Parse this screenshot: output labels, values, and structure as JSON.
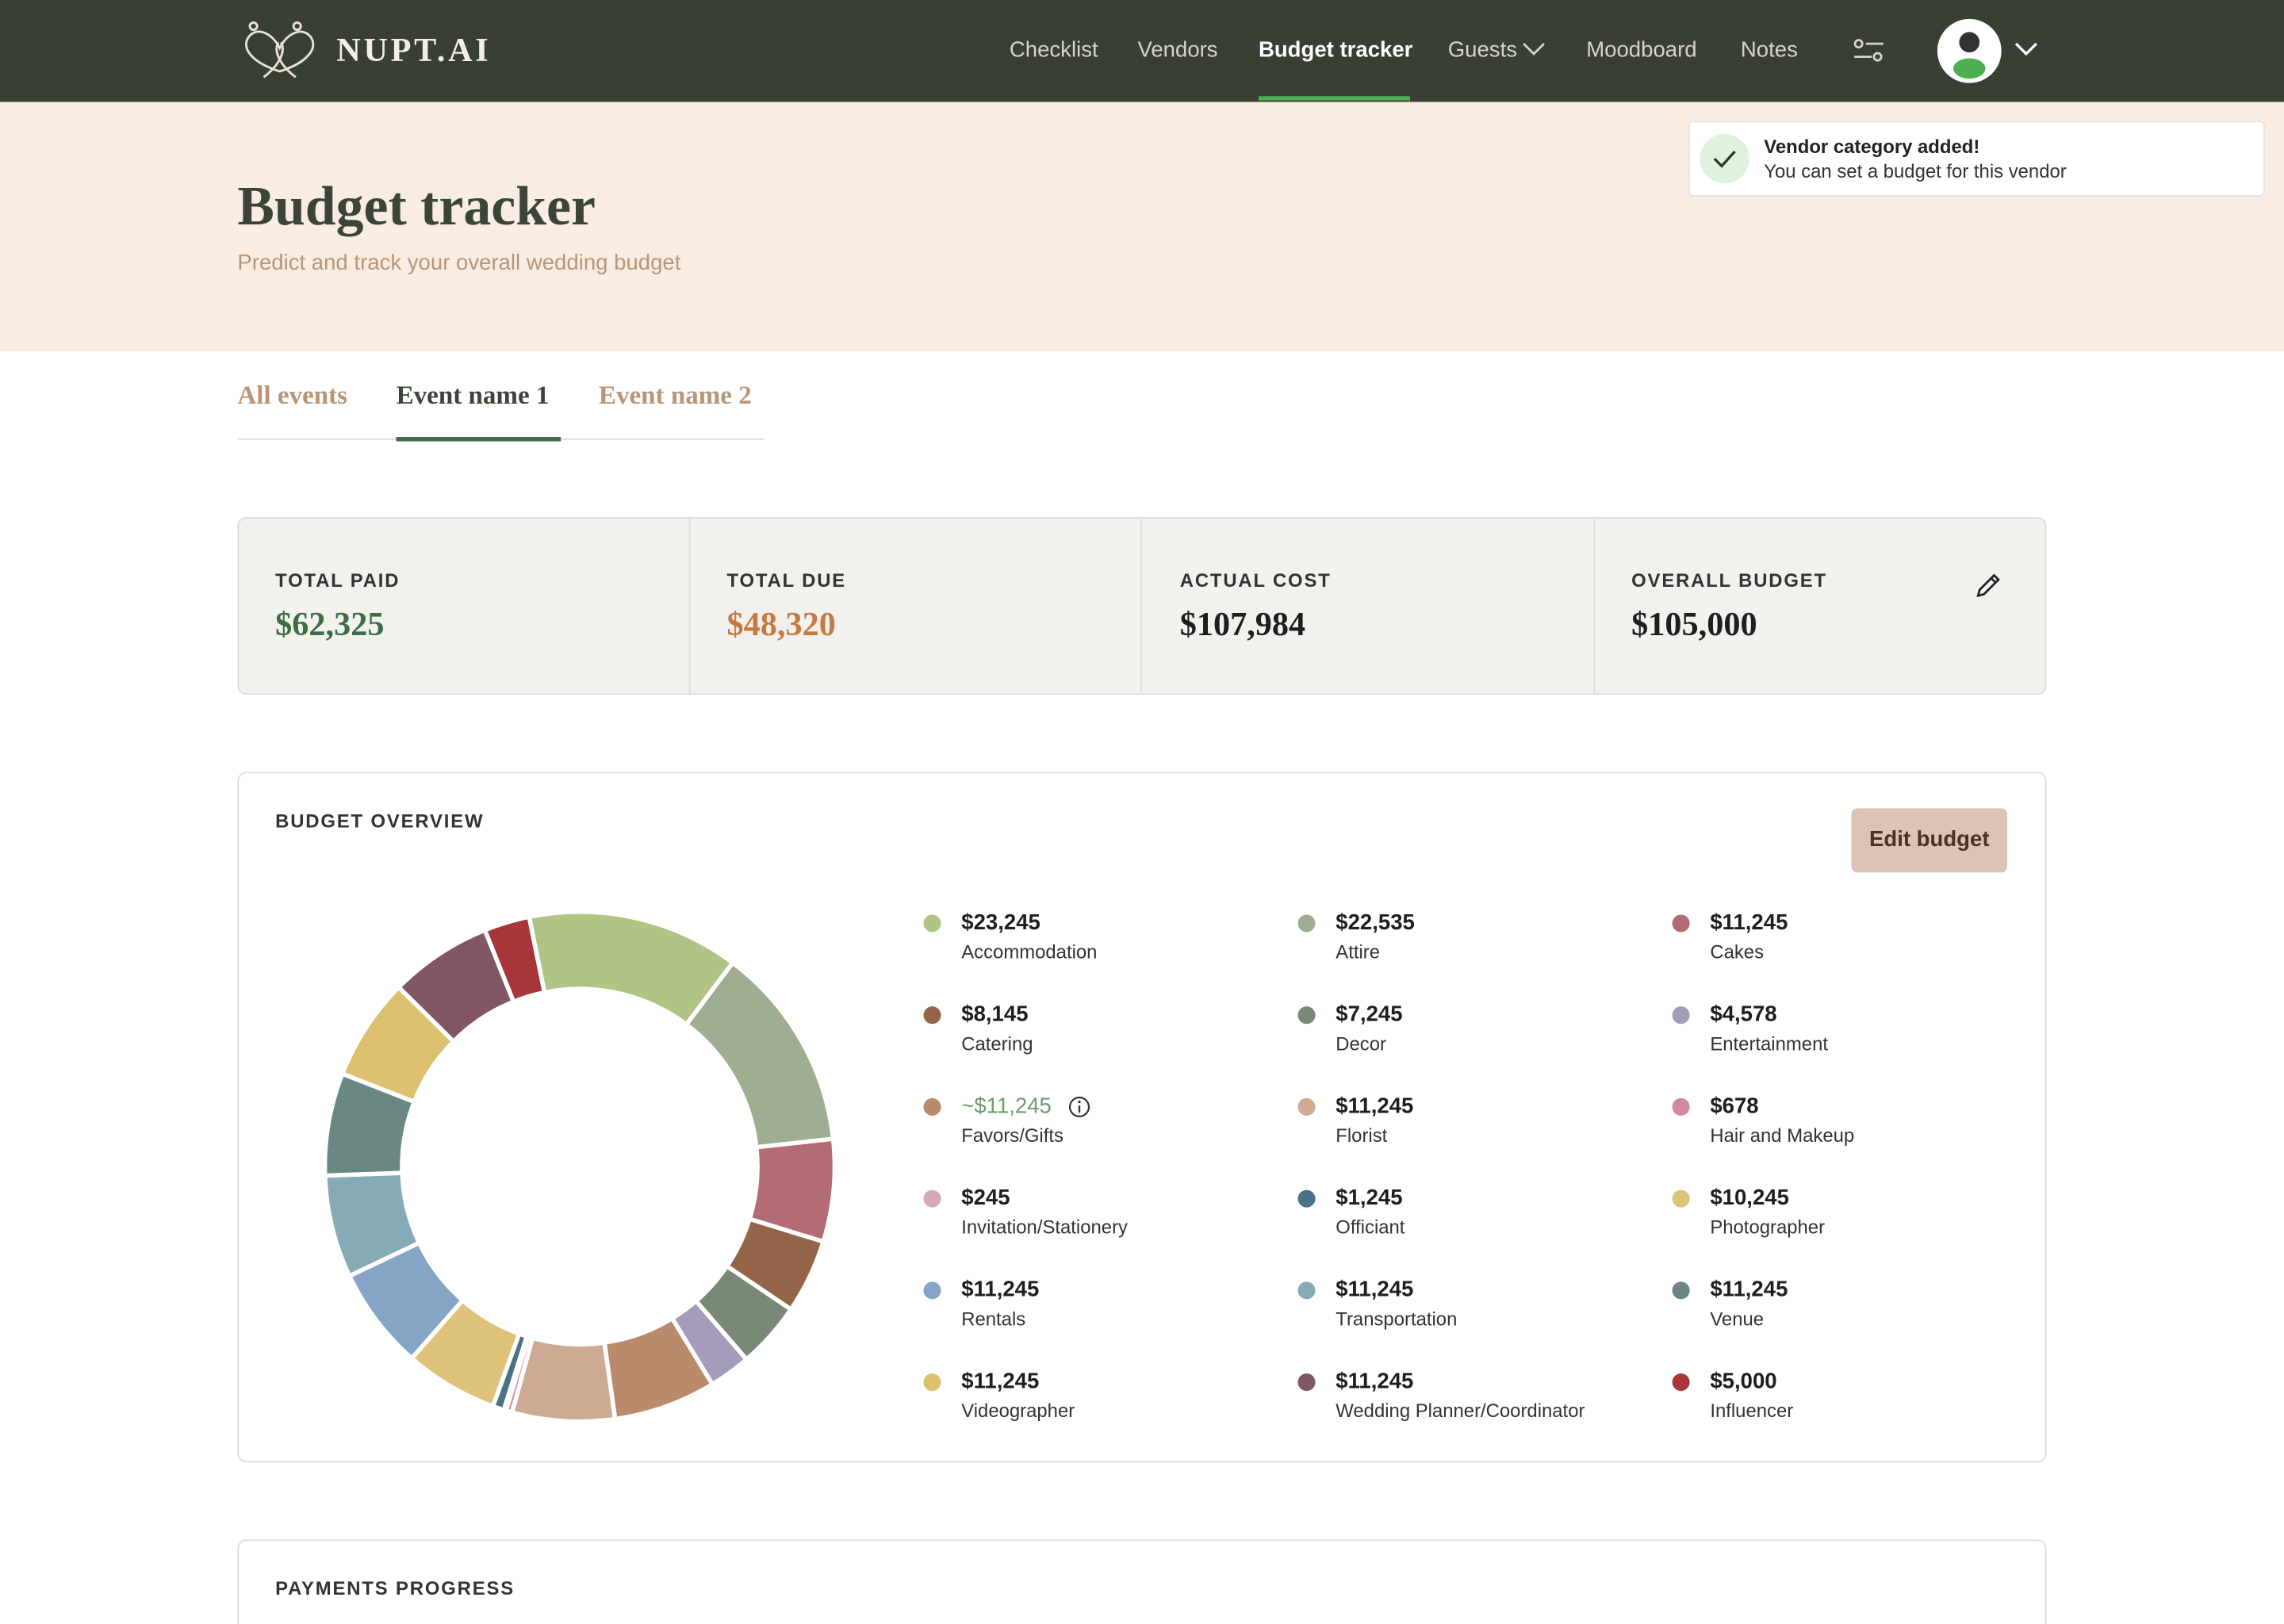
{
  "nav": {
    "brand": "NUPT.AI",
    "links": [
      "Checklist",
      "Vendors",
      "Budget tracker",
      "Guests",
      "Moodboard",
      "Notes"
    ]
  },
  "toast": {
    "title": "Vendor category added!",
    "message": "You can set a budget for this vendor"
  },
  "header": {
    "title": "Budget tracker",
    "subtitle": "Predict and track your overall wedding budget"
  },
  "tabs": [
    "All events",
    "Event name 1",
    "Event name 2"
  ],
  "stats": [
    {
      "label": "TOTAL PAID",
      "value": "$62,325",
      "color": "#3b6e45"
    },
    {
      "label": "TOTAL DUE",
      "value": "$48,320",
      "color": "#c7793f"
    },
    {
      "label": "ACTUAL COST",
      "value": "$107,984",
      "color": "#1e1e1e"
    },
    {
      "label": "OVERALL BUDGET",
      "value": "$105,000",
      "color": "#1e1e1e"
    }
  ],
  "budget_overview": {
    "title": "BUDGET OVERVIEW",
    "button": "Edit budget",
    "type": "donut",
    "items": [
      {
        "name": "Accommodation",
        "amount": {
          "value": 23245,
          "label": "$23,245"
        },
        "color": "#b0c585"
      },
      {
        "name": "Attire",
        "amount": {
          "value": 22535,
          "label": "$22,535"
        },
        "color": "#9fae92"
      },
      {
        "name": "Cakes",
        "amount": {
          "value": 11245,
          "label": "$11,245"
        },
        "color": "#b36b74"
      },
      {
        "name": "Catering",
        "amount": {
          "value": 8145,
          "label": "$8,145"
        },
        "color": "#946448"
      },
      {
        "name": "Decor",
        "amount": {
          "value": 7245,
          "label": "$7,245"
        },
        "color": "#7a8878"
      },
      {
        "name": "Entertainment",
        "amount": {
          "value": 4578,
          "label": "$4,578"
        },
        "color": "#a59bbb"
      },
      {
        "name": "Favors/Gifts",
        "amount": {
          "value": 11245,
          "label": "~$11,245"
        },
        "color": "#b98a6c",
        "estimate": true
      },
      {
        "name": "Florist",
        "amount": {
          "value": 11245,
          "label": "$11,245"
        },
        "color": "#ccab92"
      },
      {
        "name": "Hair and Makeup",
        "amount": {
          "value": 678,
          "label": "$678"
        },
        "color": "#d28a9e"
      },
      {
        "name": "Invitation/Stationery",
        "amount": {
          "value": 245,
          "label": "$245"
        },
        "color": "#d6a9b5"
      },
      {
        "name": "Officiant",
        "amount": {
          "value": 1245,
          "label": "$1,245"
        },
        "color": "#4a7287"
      },
      {
        "name": "Photographer",
        "amount": {
          "value": 10245,
          "label": "$10,245"
        },
        "color": "#dfc27a"
      },
      {
        "name": "Rentals",
        "amount": {
          "value": 11245,
          "label": "$11,245"
        },
        "color": "#86a4c6"
      },
      {
        "name": "Transportation",
        "amount": {
          "value": 11245,
          "label": "$11,245"
        },
        "color": "#86aab6"
      },
      {
        "name": "Venue",
        "amount": {
          "value": 11245,
          "label": "$11,245"
        },
        "color": "#6b8784"
      },
      {
        "name": "Videographer",
        "amount": {
          "value": 11245,
          "label": "$11,245"
        },
        "color": "#dcc070"
      },
      {
        "name": "Wedding Planner/Coordinator",
        "amount": {
          "value": 11245,
          "label": "$11,245"
        },
        "color": "#825664"
      },
      {
        "name": "Influencer",
        "amount": {
          "value": 5000,
          "label": "$5,000"
        },
        "color": "#a8353a"
      }
    ]
  },
  "payments_progress": {
    "title": "PAYMENTS PROGRESS"
  }
}
